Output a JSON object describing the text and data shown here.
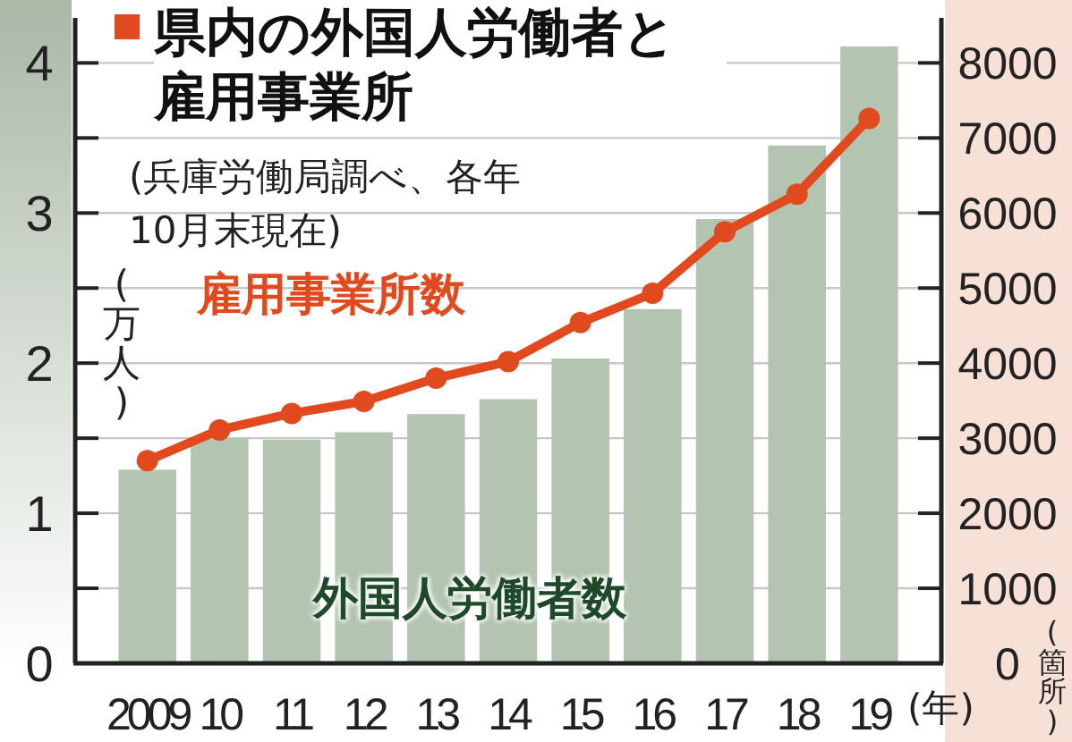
{
  "chart_data": {
    "type": "bar",
    "title": "県内の外国人労働者と雇用事業所",
    "subtitle": "(兵庫労働局調べ、各年10月末現在)",
    "xlabel": "(年)",
    "ylabel": "(万人)",
    "y2label": "(箇所)",
    "categories": [
      "2009",
      "10",
      "11",
      "12",
      "13",
      "14",
      "15",
      "16",
      "17",
      "18",
      "19"
    ],
    "series": [
      {
        "name": "外国人労働者数",
        "color": "#b3c5b0",
        "values": [
          1.29,
          1.5,
          1.49,
          1.54,
          1.66,
          1.76,
          2.03,
          2.36,
          2.96,
          3.45,
          4.11
        ]
      },
      {
        "name": "雇用事業所数",
        "type": "line",
        "axis": "y2",
        "color": "#e04a1e",
        "marker": "circle",
        "values": [
          2700,
          3110,
          3330,
          3490,
          3800,
          4020,
          4540,
          4930,
          5750,
          6250,
          7260
        ]
      }
    ],
    "ylim": [
      0,
      4.3
    ],
    "yticks": [
      0,
      {
        "value": 0.5,
        "label": null
      },
      1,
      {
        "value": 1.5,
        "label": null
      },
      2,
      {
        "value": 2.5,
        "label": null
      },
      3,
      {
        "value": 3.5,
        "label": null
      },
      4
    ],
    "y2lim": [
      0,
      8600
    ],
    "y2ticks": [
      0,
      1000,
      2000,
      3000,
      4000,
      5000,
      6000,
      7000,
      8000
    ],
    "grid": "y"
  }
}
